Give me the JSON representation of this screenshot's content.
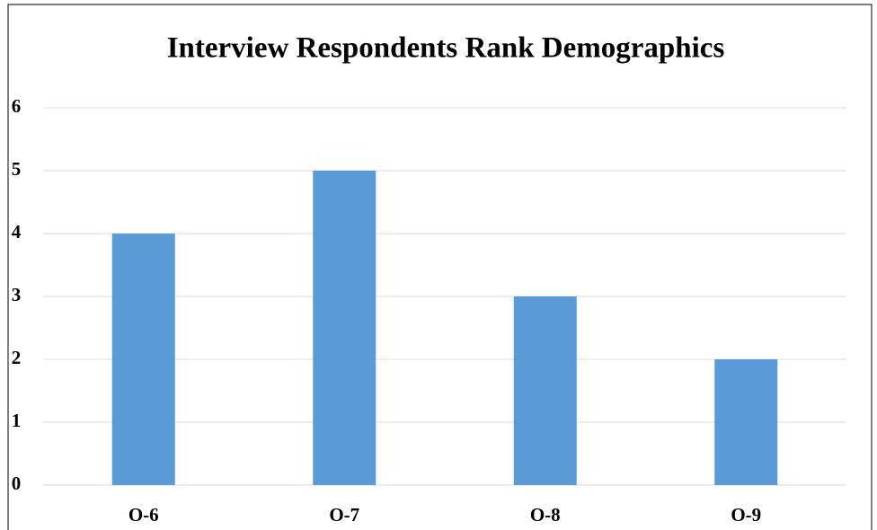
{
  "chart_data": {
    "type": "bar",
    "title": "Interview Respondents Rank Demographics",
    "categories": [
      "O-6",
      "O-7",
      "O-8",
      "O-9"
    ],
    "values": [
      4,
      5,
      3,
      2
    ],
    "color": "#5b9bd5",
    "ylim": [
      0,
      6
    ],
    "yticks": [
      0,
      1,
      2,
      3,
      4,
      5,
      6
    ],
    "grid": true
  }
}
